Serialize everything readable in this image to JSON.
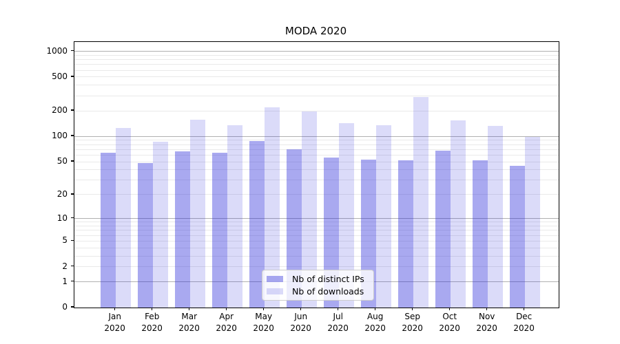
{
  "chart_data": {
    "type": "bar",
    "title": "MODA 2020",
    "categories": [
      "Jan",
      "Feb",
      "Mar",
      "Apr",
      "May",
      "Jun",
      "Jul",
      "Aug",
      "Sep",
      "Oct",
      "Nov",
      "Dec"
    ],
    "category_year": "2020",
    "series": [
      {
        "name": "Nb of distinct IPs",
        "color": "#a9a9f0",
        "fill": "rgba(40,40,218,0.40)",
        "values": [
          64,
          48,
          66,
          64,
          88,
          70,
          56,
          53,
          52,
          68,
          52,
          45
        ]
      },
      {
        "name": "Nb of downloads",
        "color": "#dadaf9",
        "fill": "rgba(40,40,218,0.17)",
        "values": [
          126,
          86,
          156,
          135,
          220,
          198,
          143,
          136,
          290,
          155,
          134,
          98
        ]
      }
    ],
    "yscale": "symlog ln(1+v)",
    "ylim": [
      0,
      1286
    ],
    "yticks": [
      0,
      1,
      2,
      5,
      10,
      20,
      50,
      100,
      200,
      500,
      1000
    ],
    "major_gridlines": [
      1,
      10,
      100,
      1000
    ],
    "minor_gridlines": [
      2,
      3,
      4,
      5,
      6,
      7,
      8,
      9,
      20,
      30,
      40,
      50,
      60,
      70,
      80,
      90,
      200,
      300,
      400,
      500,
      600,
      700,
      800,
      900
    ],
    "grid": true,
    "legend_position": "lower center"
  },
  "colors": {
    "background": "#ffffff",
    "axis": "#000000",
    "major_grid": "#b0b0b0",
    "minor_grid": "#e9e9e9",
    "legend_border": "#cccccc"
  }
}
